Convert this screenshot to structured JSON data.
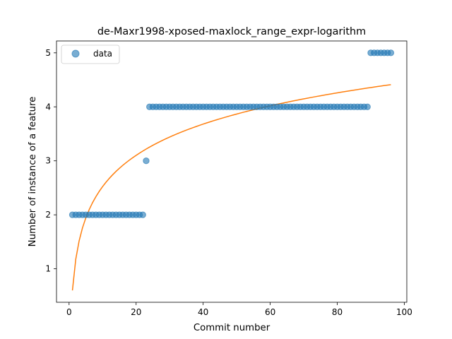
{
  "chart_data": {
    "type": "scatter",
    "title": "de-Maxr1998-xposed-maxlock_range_expr-logarithm",
    "xlabel": "Commit number",
    "ylabel": "Number of instance of a feature",
    "xlim": [
      -3.75,
      100.75
    ],
    "ylim": [
      0.38,
      5.22
    ],
    "xticks": [
      0,
      20,
      40,
      60,
      80,
      100
    ],
    "yticks": [
      1,
      2,
      3,
      4,
      5
    ],
    "legend": {
      "position": "top-left",
      "entries": [
        "data"
      ]
    },
    "series": [
      {
        "name": "data",
        "kind": "scatter",
        "color": "#1f77b4",
        "points": [
          [
            1,
            2
          ],
          [
            2,
            2
          ],
          [
            3,
            2
          ],
          [
            4,
            2
          ],
          [
            5,
            2
          ],
          [
            6,
            2
          ],
          [
            7,
            2
          ],
          [
            8,
            2
          ],
          [
            9,
            2
          ],
          [
            10,
            2
          ],
          [
            11,
            2
          ],
          [
            12,
            2
          ],
          [
            13,
            2
          ],
          [
            14,
            2
          ],
          [
            15,
            2
          ],
          [
            16,
            2
          ],
          [
            17,
            2
          ],
          [
            18,
            2
          ],
          [
            19,
            2
          ],
          [
            20,
            2
          ],
          [
            21,
            2
          ],
          [
            22,
            2
          ],
          [
            23,
            3
          ],
          [
            24,
            4
          ],
          [
            25,
            4
          ],
          [
            26,
            4
          ],
          [
            27,
            4
          ],
          [
            28,
            4
          ],
          [
            29,
            4
          ],
          [
            30,
            4
          ],
          [
            31,
            4
          ],
          [
            32,
            4
          ],
          [
            33,
            4
          ],
          [
            34,
            4
          ],
          [
            35,
            4
          ],
          [
            36,
            4
          ],
          [
            37,
            4
          ],
          [
            38,
            4
          ],
          [
            39,
            4
          ],
          [
            40,
            4
          ],
          [
            41,
            4
          ],
          [
            42,
            4
          ],
          [
            43,
            4
          ],
          [
            44,
            4
          ],
          [
            45,
            4
          ],
          [
            46,
            4
          ],
          [
            47,
            4
          ],
          [
            48,
            4
          ],
          [
            49,
            4
          ],
          [
            50,
            4
          ],
          [
            51,
            4
          ],
          [
            52,
            4
          ],
          [
            53,
            4
          ],
          [
            54,
            4
          ],
          [
            55,
            4
          ],
          [
            56,
            4
          ],
          [
            57,
            4
          ],
          [
            58,
            4
          ],
          [
            59,
            4
          ],
          [
            60,
            4
          ],
          [
            61,
            4
          ],
          [
            62,
            4
          ],
          [
            63,
            4
          ],
          [
            64,
            4
          ],
          [
            65,
            4
          ],
          [
            66,
            4
          ],
          [
            67,
            4
          ],
          [
            68,
            4
          ],
          [
            69,
            4
          ],
          [
            70,
            4
          ],
          [
            71,
            4
          ],
          [
            72,
            4
          ],
          [
            73,
            4
          ],
          [
            74,
            4
          ],
          [
            75,
            4
          ],
          [
            76,
            4
          ],
          [
            77,
            4
          ],
          [
            78,
            4
          ],
          [
            79,
            4
          ],
          [
            80,
            4
          ],
          [
            81,
            4
          ],
          [
            82,
            4
          ],
          [
            83,
            4
          ],
          [
            84,
            4
          ],
          [
            85,
            4
          ],
          [
            86,
            4
          ],
          [
            87,
            4
          ],
          [
            88,
            4
          ],
          [
            89,
            4
          ],
          [
            90,
            5
          ],
          [
            91,
            5
          ],
          [
            92,
            5
          ],
          [
            93,
            5
          ],
          [
            94,
            5
          ],
          [
            95,
            5
          ],
          [
            96,
            5
          ]
        ]
      },
      {
        "kind": "line",
        "color": "#ff7f0e",
        "model": "logarithmic",
        "a": 0.6,
        "b": 0.835,
        "x_range": [
          1,
          96
        ]
      }
    ]
  }
}
